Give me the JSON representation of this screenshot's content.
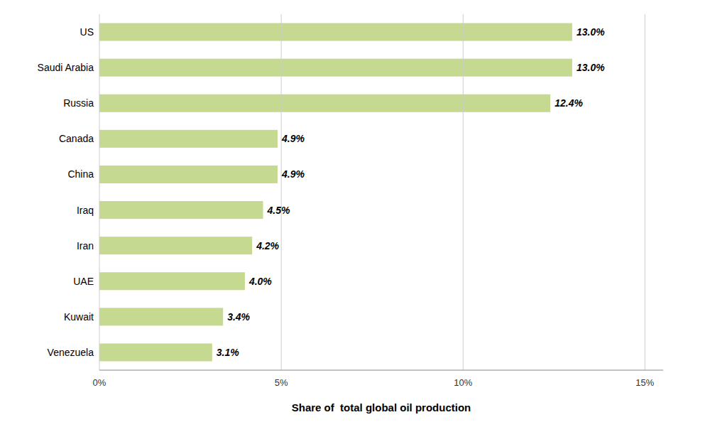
{
  "chart_data": {
    "type": "bar",
    "orientation": "horizontal",
    "categories": [
      "US",
      "Saudi Arabia",
      "Russia",
      "Canada",
      "China",
      "Iraq",
      "Iran",
      "UAE",
      "Kuwait",
      "Venezuela"
    ],
    "values": [
      13.0,
      13.0,
      12.4,
      4.9,
      4.9,
      4.5,
      4.2,
      4.0,
      3.4,
      3.1
    ],
    "value_labels": [
      "13.0%",
      "13.0%",
      "12.4%",
      "4.9%",
      "4.9%",
      "4.5%",
      "4.2%",
      "4.0%",
      "3.4%",
      "3.1%"
    ],
    "data_labels": true,
    "color": "#c5d990",
    "xlabel": "Share of  total global oil production",
    "xlim": [
      0,
      15.5
    ],
    "xticks": [
      {
        "value": 0,
        "label": "0%"
      },
      {
        "value": 5,
        "label": "5%"
      },
      {
        "value": 10,
        "label": "10%"
      },
      {
        "value": 15,
        "label": "15%"
      }
    ],
    "grid": true
  }
}
